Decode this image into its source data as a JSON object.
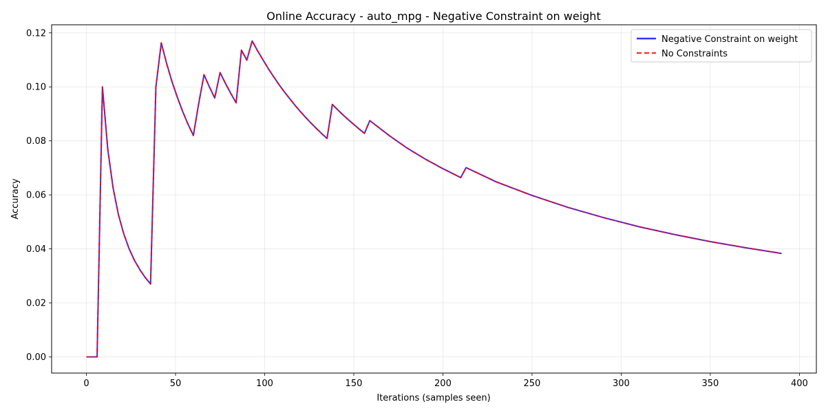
{
  "chart_data": {
    "type": "line",
    "title": "Online Accuracy - auto_mpg - Negative Constraint on weight",
    "xlabel": "Iterations (samples seen)",
    "ylabel": "Accuracy",
    "xlim": [
      -19.5,
      409.5
    ],
    "ylim": [
      -0.006,
      0.123
    ],
    "xticks": [
      0,
      50,
      100,
      150,
      200,
      250,
      300,
      350,
      400
    ],
    "xtick_labels": [
      "0",
      "50",
      "100",
      "150",
      "200",
      "250",
      "300",
      "350",
      "400"
    ],
    "yticks": [
      0.0,
      0.02,
      0.04,
      0.06,
      0.08,
      0.1,
      0.12
    ],
    "ytick_labels": [
      "0.00",
      "0.02",
      "0.04",
      "0.06",
      "0.08",
      "0.10",
      "0.12"
    ],
    "grid": true,
    "legend_position": "top-right",
    "series": [
      {
        "name": "Negative Constraint on weight",
        "color": "#0000ff",
        "style": "solid",
        "x": [
          0,
          3,
          6,
          9,
          12,
          15,
          18,
          21,
          24,
          27,
          30,
          33,
          36,
          39,
          42,
          45,
          48,
          51,
          54,
          57,
          60,
          63,
          66,
          69,
          72,
          75,
          78,
          81,
          84,
          87,
          90,
          93,
          96,
          99,
          102,
          105,
          108,
          111,
          114,
          117,
          120,
          123,
          126,
          129,
          132,
          135,
          138,
          141,
          144,
          147,
          150,
          153,
          156,
          159,
          170,
          180,
          190,
          200,
          210,
          213,
          230,
          250,
          270,
          290,
          310,
          330,
          350,
          370,
          390
        ],
        "y": [
          0.0,
          0.0,
          0.0,
          0.1,
          0.0769,
          0.0625,
          0.0526,
          0.0455,
          0.04,
          0.0357,
          0.0323,
          0.0294,
          0.027,
          0.1,
          0.1163,
          0.1087,
          0.102,
          0.0962,
          0.0909,
          0.0862,
          0.082,
          0.0938,
          0.1045,
          0.1,
          0.0959,
          0.1053,
          0.1013,
          0.0976,
          0.0941,
          0.1136,
          0.1099,
          0.117,
          0.1134,
          0.1101,
          0.1068,
          0.1038,
          0.1009,
          0.0982,
          0.0957,
          0.0932,
          0.0909,
          0.0887,
          0.0866,
          0.0846,
          0.0827,
          0.0809,
          0.0935,
          0.0915,
          0.0896,
          0.0878,
          0.0861,
          0.0844,
          0.0828,
          0.0875,
          0.0819,
          0.0773,
          0.0733,
          0.0697,
          0.0664,
          0.0701,
          0.0648,
          0.0598,
          0.0554,
          0.0516,
          0.0482,
          0.0453,
          0.0427,
          0.0404,
          0.0383
        ]
      },
      {
        "name": "No Constraints",
        "color": "#ff0000",
        "style": "dashed",
        "x": [
          0,
          3,
          6,
          9,
          12,
          15,
          18,
          21,
          24,
          27,
          30,
          33,
          36,
          39,
          42,
          45,
          48,
          51,
          54,
          57,
          60,
          63,
          66,
          69,
          72,
          75,
          78,
          81,
          84,
          87,
          90,
          93,
          96,
          99,
          102,
          105,
          108,
          111,
          114,
          117,
          120,
          123,
          126,
          129,
          132,
          135,
          138,
          141,
          144,
          147,
          150,
          153,
          156,
          159,
          170,
          180,
          190,
          200,
          210,
          213,
          230,
          250,
          270,
          290,
          310,
          330,
          350,
          370,
          390
        ],
        "y": [
          0.0,
          0.0,
          0.0,
          0.1,
          0.0769,
          0.0625,
          0.0526,
          0.0455,
          0.04,
          0.0357,
          0.0323,
          0.0294,
          0.027,
          0.1,
          0.1163,
          0.1087,
          0.102,
          0.0962,
          0.0909,
          0.0862,
          0.082,
          0.0938,
          0.1045,
          0.1,
          0.0959,
          0.1053,
          0.1013,
          0.0976,
          0.0941,
          0.1136,
          0.1099,
          0.117,
          0.1134,
          0.1101,
          0.1068,
          0.1038,
          0.1009,
          0.0982,
          0.0957,
          0.0932,
          0.0909,
          0.0887,
          0.0866,
          0.0846,
          0.0827,
          0.0809,
          0.0935,
          0.0915,
          0.0896,
          0.0878,
          0.0861,
          0.0844,
          0.0828,
          0.0875,
          0.0819,
          0.0773,
          0.0733,
          0.0697,
          0.0664,
          0.0701,
          0.0648,
          0.0598,
          0.0554,
          0.0516,
          0.0482,
          0.0453,
          0.0427,
          0.0404,
          0.0383
        ]
      }
    ]
  }
}
